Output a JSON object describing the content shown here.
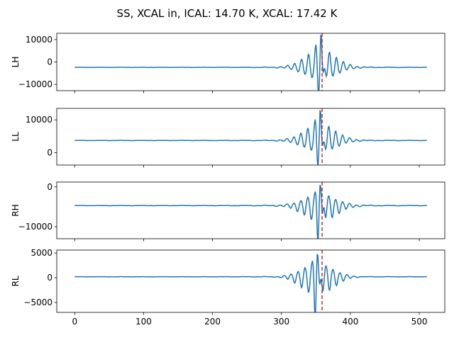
{
  "title": "SS, XCAL in, ICAL: 14.70 K, XCAL: 17.42 K",
  "colors": {
    "series": "#1f77b4",
    "marker": "#d62728",
    "axes": "#000000"
  },
  "chart_data": {
    "type": "line",
    "xlim": [
      -26,
      537
    ],
    "xticks": [
      0,
      100,
      200,
      300,
      400,
      500
    ],
    "xticklabels": [
      "0",
      "100",
      "200",
      "300",
      "400",
      "500"
    ],
    "n_samples": 512,
    "marker_x": 359,
    "marker_style": "dashed",
    "grid": false,
    "legend": "none",
    "panels": [
      {
        "ylabel": "LH",
        "ylim": [
          -12800,
          12800
        ],
        "yticks": [
          10000,
          0,
          -10000
        ],
        "yticklabels": [
          "10000",
          "0",
          "−10000"
        ],
        "baseline": -2400,
        "peak_center": 357,
        "peak_value": 12200,
        "trough_value": -12500,
        "ripple": 400
      },
      {
        "ylabel": "LL",
        "ylim": [
          -3800,
          13500
        ],
        "yticks": [
          10000,
          0
        ],
        "yticklabels": [
          "10000",
          "0"
        ],
        "baseline": 3700,
        "peak_center": 356,
        "peak_value": 13000,
        "trough_value": -3000,
        "ripple": 250
      },
      {
        "ylabel": "RH",
        "ylim": [
          -13000,
          1200
        ],
        "yticks": [
          0,
          -10000
        ],
        "yticklabels": [
          "0",
          "−10000"
        ],
        "baseline": -4700,
        "peak_center": 356,
        "peak_value": 500,
        "trough_value": -12500,
        "ripple": 300
      },
      {
        "ylabel": "RL",
        "ylim": [
          -7000,
          5600
        ],
        "yticks": [
          5000,
          0,
          -5000
        ],
        "yticklabels": [
          "5000",
          "0",
          "−5000"
        ],
        "baseline": 200,
        "peak_center": 352,
        "peak_value": 4800,
        "trough_value": -6800,
        "ripple": 150
      }
    ]
  }
}
